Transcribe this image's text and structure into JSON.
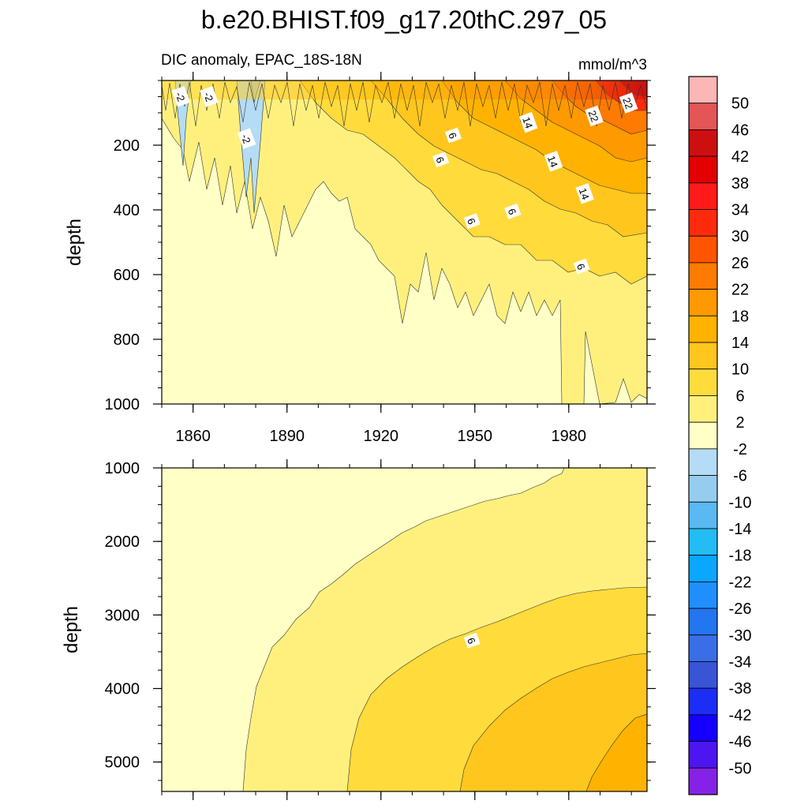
{
  "chart_data": {
    "type": "contour",
    "title": "b.e20.BHIST.f09_g17.20thC.297_05",
    "subtitle_left": "DIC anomaly, EPAC_18S-18N",
    "units": "mmol/m^3",
    "xlabel": "",
    "ylabel": "depth",
    "xlim": [
      1850,
      2005
    ],
    "x_ticks": [
      "1860",
      "1890",
      "1920",
      "1950",
      "1980"
    ],
    "x_tick_values": [
      1860,
      1890,
      1920,
      1950,
      1980
    ],
    "panels": [
      {
        "name": "upper",
        "ylim": [
          0,
          1000
        ],
        "y_ticks": [
          "200",
          "400",
          "600",
          "800",
          "1000"
        ],
        "y_tick_values": [
          200,
          400,
          600,
          800,
          1000
        ],
        "contour_labels": [
          {
            "text": "-2",
            "x": 1856,
            "depth": 50
          },
          {
            "text": "-2",
            "x": 1865,
            "depth": 50
          },
          {
            "text": "-2",
            "x": 1877,
            "depth": 180
          },
          {
            "text": "6",
            "x": 1943,
            "depth": 170
          },
          {
            "text": "6",
            "x": 1939,
            "depth": 245
          },
          {
            "text": "14",
            "x": 1967,
            "depth": 130
          },
          {
            "text": "22",
            "x": 1988,
            "depth": 110
          },
          {
            "text": "22",
            "x": 1999,
            "depth": 70
          },
          {
            "text": "14",
            "x": 1975,
            "depth": 250
          },
          {
            "text": "14",
            "x": 1985,
            "depth": 350
          },
          {
            "text": "6",
            "x": 1949,
            "depth": 435
          },
          {
            "text": "6",
            "x": 1962,
            "depth": 405
          },
          {
            "text": "6",
            "x": 1984,
            "depth": 575
          }
        ]
      },
      {
        "name": "lower",
        "ylim": [
          1000,
          5400
        ],
        "y_ticks": [
          "1000",
          "2000",
          "3000",
          "4000",
          "5000"
        ],
        "y_tick_values": [
          1000,
          2000,
          3000,
          4000,
          5000
        ],
        "contour_labels": [
          {
            "text": "6",
            "x": 1949,
            "depth": 3350
          }
        ]
      }
    ],
    "colorbar": {
      "levels": [
        "50",
        "46",
        "42",
        "38",
        "34",
        "30",
        "26",
        "22",
        "18",
        "14",
        "10",
        "6",
        "2",
        "-2",
        "-6",
        "-10",
        "-14",
        "-18",
        "-22",
        "-26",
        "-30",
        "-34",
        "-38",
        "-42",
        "-46",
        "-50"
      ],
      "colors": [
        "#fdb6b6",
        "#e45555",
        "#cc1010",
        "#e20000",
        "#ff1a1a",
        "#ff2a0d",
        "#ff5500",
        "#ff7a00",
        "#ff9900",
        "#ffb300",
        "#ffc61e",
        "#ffdb3c",
        "#fff07e",
        "#ffffc6",
        "#b4dcf4",
        "#96cdee",
        "#5ab9f0",
        "#23bcf5",
        "#0aa6ff",
        "#1f8fff",
        "#2375f0",
        "#3a6ee6",
        "#3855d6",
        "#1c2ef5",
        "#1500ff",
        "#4d15f0",
        "#8522e6"
      ]
    }
  }
}
